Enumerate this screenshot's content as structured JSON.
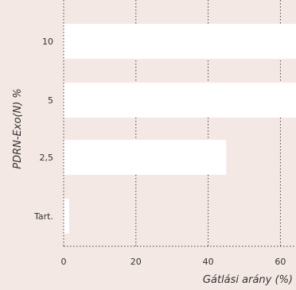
{
  "chart_data": {
    "type": "bar",
    "orientation": "horizontal",
    "categories": [
      "10",
      "5",
      "2,5",
      "Tart."
    ],
    "values": [
      65,
      65,
      45,
      1.5
    ],
    "xlabel": "Gátlási arány (%)",
    "ylabel": "PDRN-Exo(N) %",
    "xticks": [
      "0",
      "20",
      "40",
      "60"
    ],
    "xtick_values": [
      0,
      20,
      40,
      60
    ],
    "xlim": [
      0,
      65
    ],
    "grid": "vertical-dotted",
    "colors": {
      "bar": "#ffffff",
      "background": "#f4e8e4",
      "grid": "#444444"
    }
  }
}
